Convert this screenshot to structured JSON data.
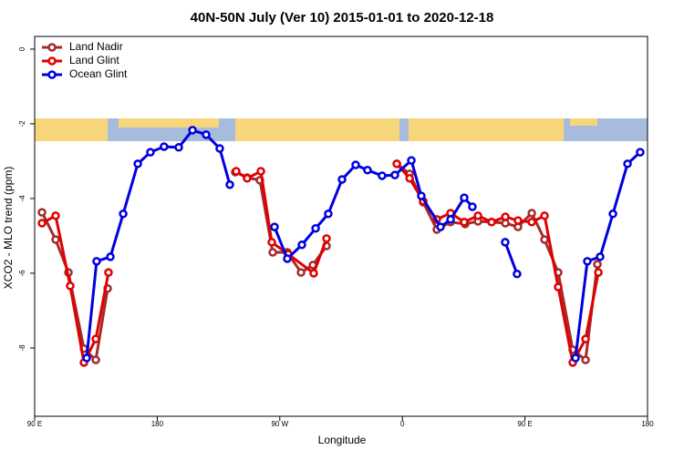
{
  "chart_data": {
    "type": "line",
    "title": "40N-50N July (Ver 10)   2015-01-01 to 2020-12-18",
    "x_label": "Longitude",
    "y_label": "XCO2 - MLO trend (ppm)",
    "xlim": [
      90,
      540
    ],
    "ylim": [
      -9.83,
      0.34
    ],
    "xticks": [
      {
        "value": 90,
        "label": "90 E"
      },
      180,
      {
        "value": 270,
        "label": "90 W"
      },
      {
        "value": 360,
        "label": "0"
      },
      {
        "value": 450,
        "label": "90 E"
      },
      180
    ],
    "yticks": [
      0,
      -2,
      -4,
      -6,
      -8
    ],
    "legend": "top-left",
    "series": [
      {
        "name": "Land Nadir",
        "color": "#a52a2a",
        "x": [
          95.4,
          105.4,
          114.8,
          126.2,
          134.9,
          143.6,
          null,
          237.3,
          246,
          255.4,
          264.8,
          275.5,
          285.6,
          294.3,
          304.3,
          null,
          355.9,
          365.3,
          375.3,
          385.3,
          395.4,
          406.1,
          415.5,
          425.5,
          435.6,
          444.9,
          455,
          464.4,
          474.4,
          485.1,
          494.5,
          503.2
        ],
        "values": [
          -4.37,
          -5.1,
          -5.98,
          -8.02,
          -8.32,
          -6.41,
          null,
          -3.29,
          -3.44,
          -3.51,
          -5.44,
          -5.44,
          -5.98,
          -5.78,
          -5.27,
          null,
          -3.07,
          -3.34,
          -4.1,
          -4.83,
          -4.63,
          -4.68,
          -4.61,
          -4.63,
          -4.66,
          -4.76,
          -4.39,
          -5.1,
          -5.98,
          -8.05,
          -8.32,
          -5.76
        ]
      },
      {
        "name": "Land Glint",
        "color": "#e00000",
        "x": [
          95.4,
          105.4,
          116.1,
          126.2,
          134.9,
          144.2,
          null,
          238,
          246,
          256.1,
          264.1,
          276.2,
          294.9,
          304.3,
          null,
          355.9,
          365.3,
          375.3,
          385.3,
          395.4,
          405.4,
          415.5,
          425.5,
          435.6,
          444.9,
          455,
          464.4,
          474.4,
          485.1,
          494.5,
          503.9
        ],
        "values": [
          -4.66,
          -4.46,
          -6.34,
          -8.39,
          -7.76,
          -5.98,
          null,
          -3.27,
          -3.46,
          -3.27,
          -5.17,
          -5.49,
          -6.0,
          -5.07,
          null,
          -3.07,
          -3.46,
          -4.07,
          -4.56,
          -4.39,
          -4.63,
          -4.46,
          -4.63,
          -4.49,
          -4.59,
          -4.63,
          -4.46,
          -6.37,
          -8.39,
          -7.76,
          -5.98
        ]
      },
      {
        "name": "Ocean Glint",
        "color": "#0000e0",
        "x": [
          128.2,
          135.5,
          145.6,
          155,
          165.7,
          175,
          185,
          195.8,
          205.9,
          215.9,
          225.9,
          233.3,
          null,
          266.1,
          275.5,
          286.2,
          296.3,
          305.6,
          315.7,
          325.7,
          334.4,
          345.1,
          354.5,
          366.6,
          373.9,
          388,
          395.4,
          405.4,
          411.4,
          null,
          435.5,
          444.2,
          null,
          487.1,
          495.8,
          505.2,
          514.6,
          525.3,
          534.6
        ],
        "values": [
          -8.27,
          -5.68,
          -5.56,
          -4.41,
          -3.07,
          -2.76,
          -2.61,
          -2.63,
          -2.17,
          -2.29,
          -2.66,
          -3.63,
          null,
          -4.76,
          -5.61,
          -5.24,
          -4.8,
          -4.41,
          -3.49,
          -3.1,
          -3.24,
          -3.39,
          -3.37,
          -2.98,
          -3.93,
          -4.76,
          -4.56,
          -3.98,
          -4.22,
          null,
          -5.17,
          -6.02,
          null,
          -8.27,
          -5.68,
          -5.56,
          -4.41,
          -3.07,
          -2.76
        ]
      }
    ]
  }
}
